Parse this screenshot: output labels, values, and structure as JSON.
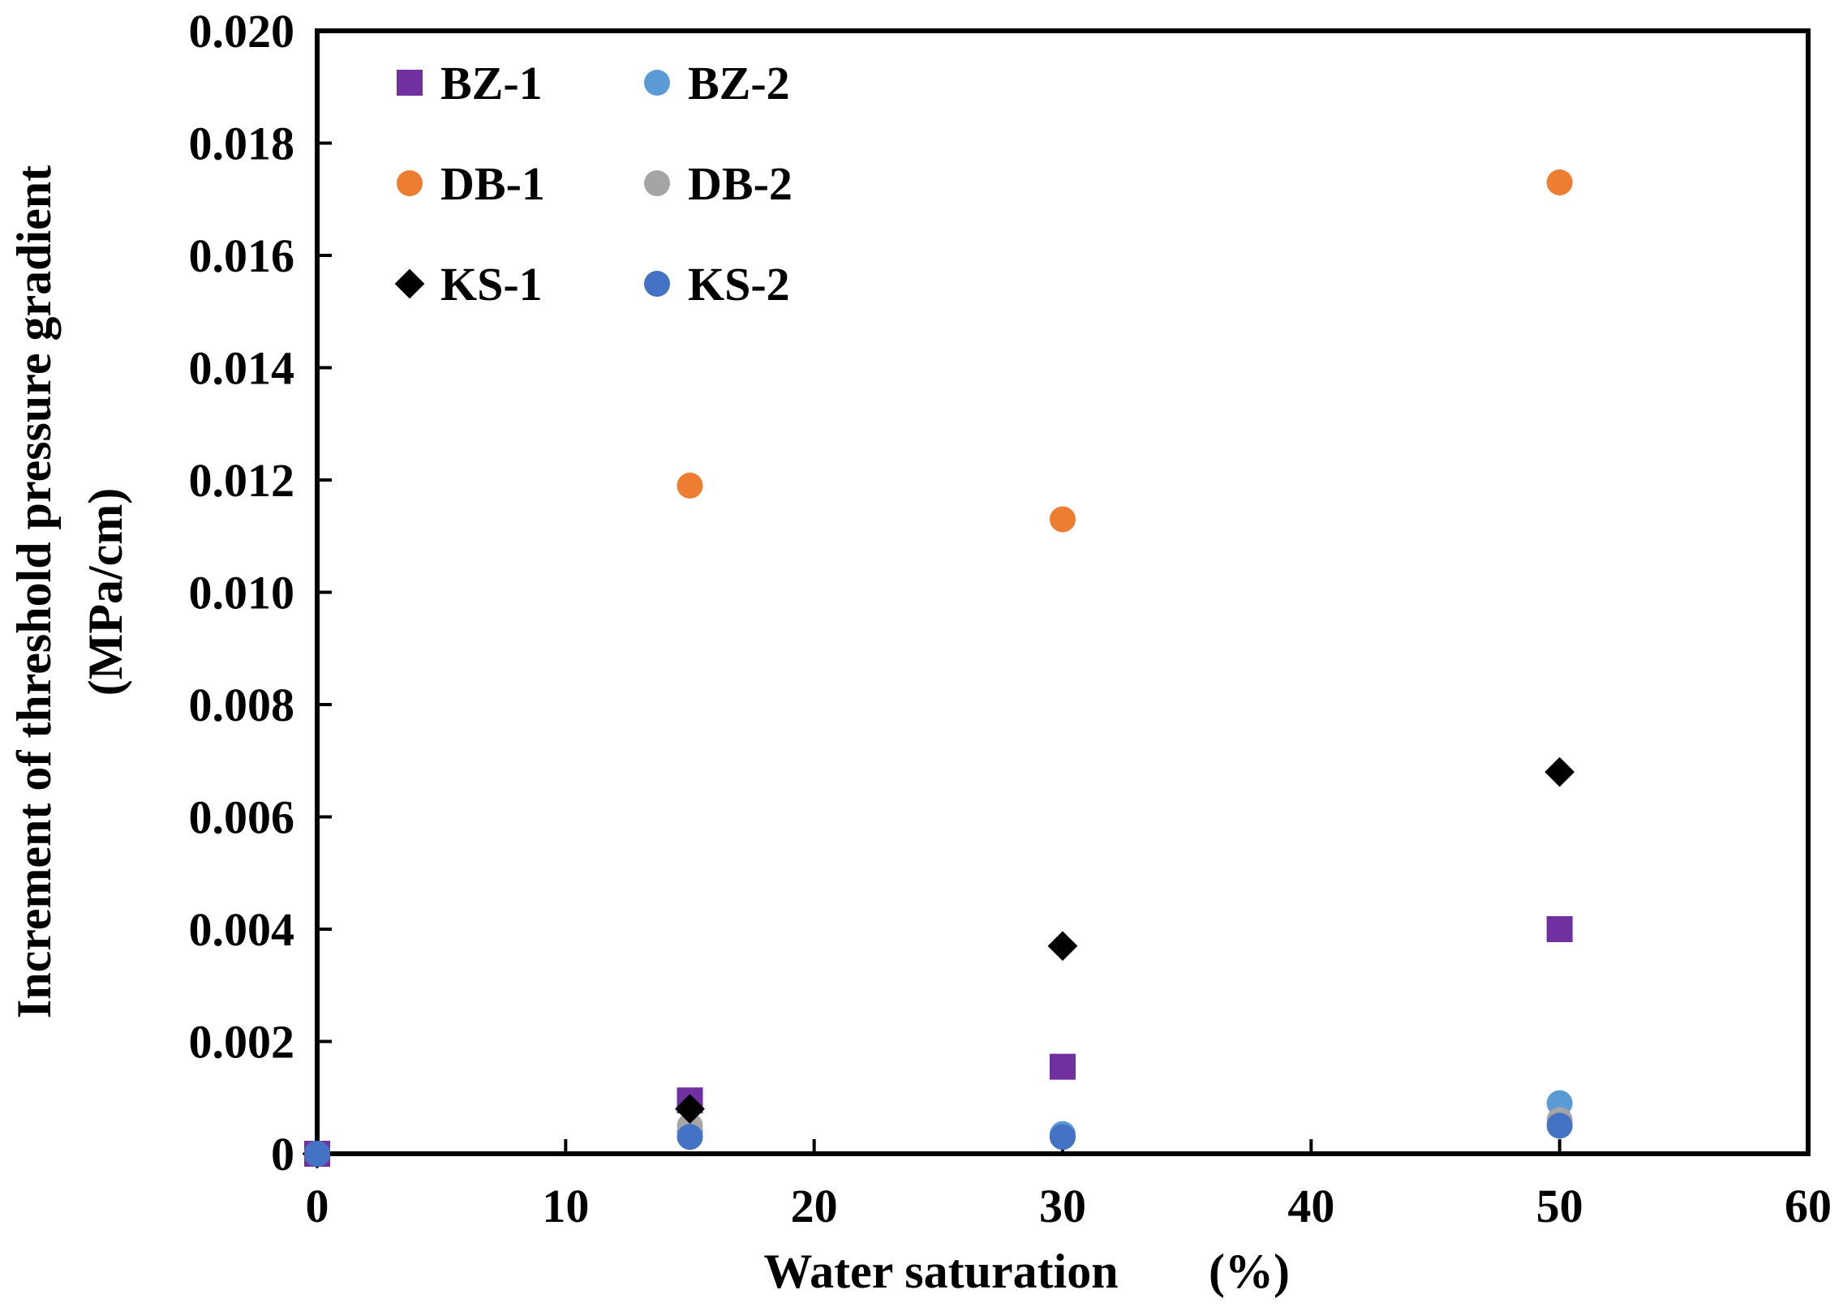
{
  "chart_data": {
    "type": "scatter",
    "title": "",
    "xlabel": "Water saturation",
    "xlabel_unit": "(%)",
    "ylabel_line1": "Increment of threshold pressure gradient",
    "ylabel_line2": "(MPa/cm)",
    "xlim": [
      0,
      60
    ],
    "ylim": [
      0,
      0.02
    ],
    "xticks": [
      "0",
      "10",
      "20",
      "30",
      "40",
      "50",
      "60"
    ],
    "yticks": [
      "0",
      "0.002",
      "0.004",
      "0.006",
      "0.008",
      "0.010",
      "0.012",
      "0.014",
      "0.016",
      "0.018",
      "0.020"
    ],
    "grid": false,
    "legend_position": "top-left",
    "series": [
      {
        "name": "BZ-1",
        "marker": "square",
        "color": "#7030A0",
        "x": [
          0,
          15,
          30,
          50
        ],
        "y": [
          0,
          0.00095,
          0.00155,
          0.004
        ]
      },
      {
        "name": "BZ-2",
        "marker": "circle",
        "color": "#5B9BD5",
        "x": [
          0,
          15,
          30,
          50
        ],
        "y": [
          0,
          0.0004,
          0.00035,
          0.0009
        ]
      },
      {
        "name": "DB-1",
        "marker": "circle",
        "color": "#ED7D31",
        "x": [
          0,
          15,
          30,
          50
        ],
        "y": [
          0,
          0.0119,
          0.0113,
          0.0173
        ]
      },
      {
        "name": "DB-2",
        "marker": "circle",
        "color": "#A5A5A5",
        "x": [
          0,
          15,
          30,
          50
        ],
        "y": [
          0,
          0.0005,
          0.0003,
          0.0006
        ]
      },
      {
        "name": "KS-1",
        "marker": "diamond",
        "color": "#000000",
        "x": [
          0,
          15,
          30,
          50
        ],
        "y": [
          0,
          0.0008,
          0.0037,
          0.0068
        ]
      },
      {
        "name": "KS-2",
        "marker": "circle",
        "color": "#4472C4",
        "x": [
          0,
          15,
          30,
          50
        ],
        "y": [
          0,
          0.0003,
          0.0003,
          0.0005
        ]
      }
    ]
  }
}
